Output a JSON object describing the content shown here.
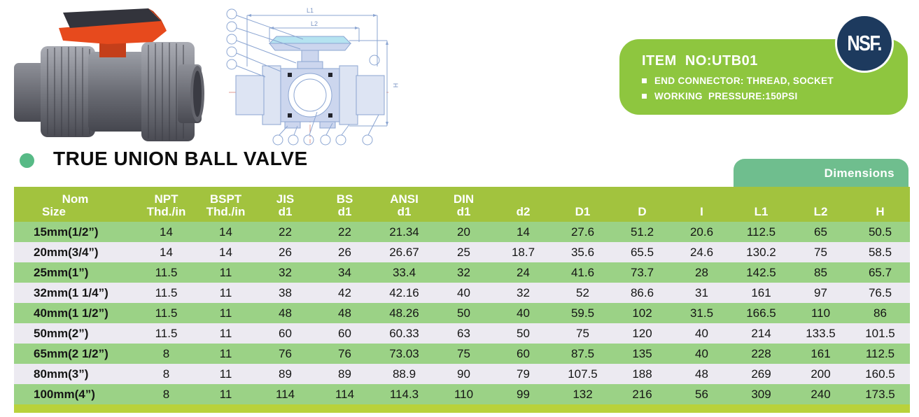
{
  "page": {
    "title": "TRUE UNION BALL VALVE",
    "dimensions_tab": "Dimensions"
  },
  "info_box": {
    "item_no": "ITEM  NO:UTB01",
    "features": [
      "END CONNECTOR: THREAD, SOCKET",
      "WORKING  PRESSURE:150PSI"
    ],
    "nsf_label": "NSF."
  },
  "images": {
    "product_photo": "gray PVC true union ball valve with red handle",
    "technical_drawing": "valve cross-section line drawing with dimension callouts"
  },
  "drawing": {
    "dim_labels": [
      "L1",
      "L2",
      "H"
    ]
  },
  "colors": {
    "header_green": "#a2c33e",
    "row_green": "#9bd286",
    "row_white": "#eceaf1",
    "footer_strip": "#b9d23b",
    "info_box_green": "#8ec63f",
    "tab_green": "#6fbe8e",
    "title_dot_green": "#57ba86",
    "nsf_navy": "#1d3a5e",
    "handle_red": "#e74a1d"
  },
  "table": {
    "headers": [
      [
        "Nom",
        "Size"
      ],
      [
        "NPT",
        "Thd./in"
      ],
      [
        "BSPT",
        "Thd./in"
      ],
      [
        "JIS",
        "d1"
      ],
      [
        "BS",
        "d1"
      ],
      [
        "ANSI",
        "d1"
      ],
      [
        "DIN",
        "d1"
      ],
      [
        "",
        "d2"
      ],
      [
        "",
        "D1"
      ],
      [
        "",
        "D"
      ],
      [
        "",
        "I"
      ],
      [
        "",
        "L1"
      ],
      [
        "",
        "L2"
      ],
      [
        "",
        "H"
      ]
    ],
    "rows": [
      [
        "15mm(1/2”)",
        "14",
        "14",
        "22",
        "22",
        "21.34",
        "20",
        "14",
        "27.6",
        "51.2",
        "20.6",
        "112.5",
        "65",
        "50.5"
      ],
      [
        "20mm(3/4”)",
        "14",
        "14",
        "26",
        "26",
        "26.67",
        "25",
        "18.7",
        "35.6",
        "65.5",
        "24.6",
        "130.2",
        "75",
        "58.5"
      ],
      [
        "25mm(1”)",
        "11.5",
        "11",
        "32",
        "34",
        "33.4",
        "32",
        "24",
        "41.6",
        "73.7",
        "28",
        "142.5",
        "85",
        "65.7"
      ],
      [
        "32mm(1 1/4”)",
        "11.5",
        "11",
        "38",
        "42",
        "42.16",
        "40",
        "32",
        "52",
        "86.6",
        "31",
        "161",
        "97",
        "76.5"
      ],
      [
        "40mm(1 1/2”)",
        "11.5",
        "11",
        "48",
        "48",
        "48.26",
        "50",
        "40",
        "59.5",
        "102",
        "31.5",
        "166.5",
        "110",
        "86"
      ],
      [
        "50mm(2”)",
        "11.5",
        "11",
        "60",
        "60",
        "60.33",
        "63",
        "50",
        "75",
        "120",
        "40",
        "214",
        "133.5",
        "101.5"
      ],
      [
        "65mm(2 1/2”)",
        "8",
        "11",
        "76",
        "76",
        "73.03",
        "75",
        "60",
        "87.5",
        "135",
        "40",
        "228",
        "161",
        "112.5"
      ],
      [
        "80mm(3”)",
        "8",
        "11",
        "89",
        "89",
        "88.9",
        "90",
        "79",
        "107.5",
        "188",
        "48",
        "269",
        "200",
        "160.5"
      ],
      [
        "100mm(4”)",
        "8",
        "11",
        "114",
        "114",
        "114.3",
        "110",
        "99",
        "132",
        "216",
        "56",
        "309",
        "240",
        "173.5"
      ]
    ]
  }
}
